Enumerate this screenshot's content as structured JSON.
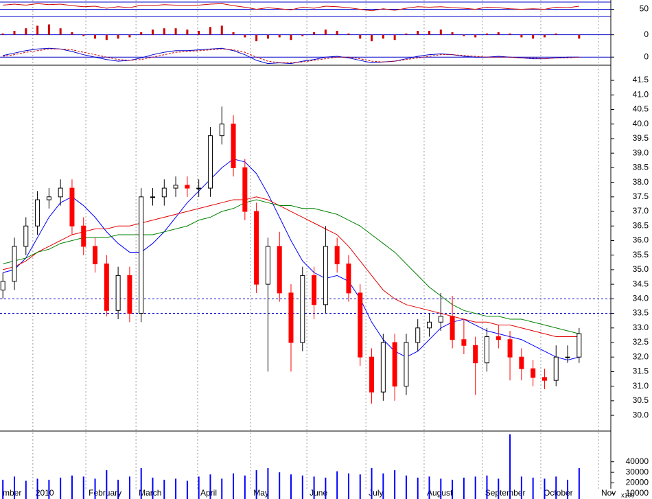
{
  "chart_data": [
    {
      "type": "line",
      "ylim": [
        32,
        68
      ],
      "yticks": [
        50
      ],
      "x": [
        1,
        5,
        9,
        13,
        17,
        21,
        25,
        29,
        33,
        37,
        41,
        45,
        49,
        53,
        57,
        61,
        65,
        69,
        73,
        77,
        81,
        85,
        89,
        93,
        97,
        101,
        105,
        109,
        113,
        117,
        121,
        125,
        129,
        133,
        137,
        141,
        145,
        149,
        153,
        157,
        161,
        165,
        169,
        173,
        177,
        181,
        185,
        189,
        193,
        197,
        201
      ],
      "series": [
        {
          "color": "#cc0000",
          "values": [
            58,
            60,
            58,
            61,
            59,
            60,
            57,
            55,
            56,
            52,
            55,
            53,
            58,
            57,
            59,
            58,
            57,
            58,
            60,
            61,
            57,
            54,
            50,
            53,
            51,
            49,
            54,
            52,
            56,
            55,
            53,
            50,
            47,
            51,
            48,
            52,
            55,
            54,
            55,
            53,
            52,
            50,
            54,
            53,
            51,
            50,
            51,
            50,
            54,
            53,
            56
          ]
        }
      ]
    },
    {
      "type": "histogram-bars",
      "ylim": [
        -0.6,
        1.2
      ],
      "yticks": [
        0
      ],
      "color": "#cc0000",
      "x": [
        1,
        5,
        9,
        13,
        17,
        21,
        25,
        29,
        33,
        37,
        41,
        45,
        49,
        53,
        57,
        61,
        65,
        69,
        73,
        77,
        81,
        85,
        89,
        93,
        97,
        101,
        105,
        109,
        113,
        117,
        121,
        125,
        129,
        133,
        137,
        141,
        145,
        149,
        153,
        157,
        161,
        165,
        169,
        173,
        177,
        181,
        185,
        189,
        193,
        197,
        201
      ],
      "values": [
        0.1,
        0.3,
        0.5,
        0.7,
        0.8,
        0.5,
        0.2,
        -0.1,
        -0.3,
        -0.4,
        -0.3,
        -0.2,
        0.2,
        0.4,
        0.5,
        0.5,
        0.4,
        0.3,
        0.6,
        0.7,
        0.2,
        -0.2,
        -0.5,
        -0.3,
        -0.2,
        -0.4,
        -0.1,
        0.2,
        0.4,
        0.3,
        0.1,
        -0.3,
        -0.5,
        -0.3,
        -0.4,
        0.1,
        0.3,
        0.3,
        0.4,
        0.2,
        -0.1,
        -0.2,
        0.1,
        0.2,
        0.1,
        -0.2,
        -0.3,
        -0.2,
        0.1,
        0.0,
        -0.3
      ]
    },
    {
      "type": "line",
      "ylim": [
        -1.0,
        1.8
      ],
      "yticks": [
        0
      ],
      "x": [
        1,
        5,
        9,
        13,
        17,
        21,
        25,
        29,
        33,
        37,
        41,
        45,
        49,
        53,
        57,
        61,
        65,
        69,
        73,
        77,
        81,
        85,
        89,
        93,
        97,
        101,
        105,
        109,
        113,
        117,
        121,
        125,
        129,
        133,
        137,
        141,
        145,
        149,
        153,
        157,
        161,
        165,
        169,
        173,
        177,
        181,
        185,
        189,
        193,
        197,
        201
      ],
      "series": [
        {
          "color": "#0000cc",
          "values": [
            0.2,
            0.5,
            0.8,
            1.0,
            1.1,
            1.0,
            0.7,
            0.3,
            0.0,
            -0.3,
            -0.5,
            -0.4,
            -0.1,
            0.3,
            0.6,
            0.8,
            0.8,
            0.9,
            1.0,
            1.1,
            0.8,
            0.3,
            -0.4,
            -0.8,
            -0.7,
            -0.8,
            -0.5,
            -0.3,
            0.0,
            0.1,
            -0.1,
            -0.4,
            -0.7,
            -0.6,
            -0.5,
            -0.2,
            0.1,
            0.3,
            0.4,
            0.3,
            0.1,
            0.0,
            0.0,
            0.1,
            0.0,
            -0.1,
            -0.2,
            -0.2,
            -0.1,
            0.0,
            0.0
          ]
        },
        {
          "color": "#cc0000",
          "dashed": true,
          "values": [
            0.1,
            0.3,
            0.6,
            0.8,
            1.0,
            1.0,
            0.9,
            0.6,
            0.3,
            0.0,
            -0.3,
            -0.4,
            -0.3,
            0.0,
            0.3,
            0.6,
            0.7,
            0.8,
            0.9,
            1.0,
            0.9,
            0.6,
            0.0,
            -0.5,
            -0.7,
            -0.7,
            -0.6,
            -0.4,
            -0.2,
            0.0,
            0.0,
            -0.2,
            -0.5,
            -0.6,
            -0.5,
            -0.3,
            -0.1,
            0.1,
            0.3,
            0.3,
            0.2,
            0.1,
            0.0,
            0.0,
            0.0,
            -0.1,
            -0.1,
            -0.2,
            -0.1,
            -0.1,
            0.0
          ]
        }
      ]
    },
    {
      "type": "candlestick",
      "ylim": [
        29.46,
        42.02
      ],
      "xlim": [
        0,
        212
      ],
      "levels": [
        34.0,
        33.5
      ],
      "yticks": [
        {
          "value": 30,
          "label": "30.0"
        },
        30.5,
        {
          "value": 31,
          "label": "31.0"
        },
        31.5,
        {
          "value": 32,
          "label": "32.0"
        },
        32.5,
        {
          "value": 33,
          "label": "33.0"
        },
        33.5,
        {
          "value": 34,
          "label": "34.0"
        },
        34.5,
        {
          "value": 35,
          "label": "35.0"
        },
        35.5,
        {
          "value": 36,
          "label": "36.0"
        },
        36.5,
        {
          "value": 37,
          "label": "37.0"
        },
        37.5,
        {
          "value": 38,
          "label": "38.0"
        },
        38.5,
        {
          "value": 39,
          "label": "39.0"
        },
        39.5,
        {
          "value": 40,
          "label": "40.0"
        },
        40.5,
        {
          "value": 41,
          "label": "41.0"
        },
        41.5
      ],
      "xticks": [
        {
          "value": 0,
          "label": "mber"
        },
        {
          "value": 11.4,
          "label": "2010"
        },
        {
          "value": 29.8,
          "label": "February"
        },
        {
          "value": 47.2,
          "label": "March"
        },
        {
          "value": 68.6,
          "label": "April"
        },
        {
          "value": 87,
          "label": "May"
        },
        {
          "value": 106.5,
          "label": "June"
        },
        {
          "value": 127,
          "label": "July"
        },
        {
          "value": 147.2,
          "label": "August"
        },
        {
          "value": 167.4,
          "label": "September"
        },
        {
          "value": 187.7,
          "label": "October"
        },
        {
          "value": 207.7,
          "label": "Nov"
        }
      ],
      "x": [
        1,
        5,
        9,
        13,
        17,
        21,
        25,
        29,
        33,
        37,
        41,
        45,
        49,
        53,
        57,
        61,
        65,
        69,
        73,
        77,
        81,
        85,
        89,
        93,
        97,
        101,
        105,
        109,
        113,
        117,
        121,
        125,
        129,
        133,
        137,
        141,
        145,
        149,
        153,
        157,
        161,
        165,
        169,
        173,
        177,
        181,
        185,
        189,
        193,
        197,
        201
      ],
      "open": [
        34.3,
        34.6,
        35.8,
        36.5,
        37.4,
        37.5,
        37.8,
        36.5,
        35.8,
        35.2,
        33.6,
        34.8,
        33.5,
        37.5,
        37.5,
        37.8,
        37.9,
        37.8,
        37.8,
        39.6,
        40.0,
        38.5,
        37.0,
        34.5,
        35.8,
        34.2,
        32.5,
        34.8,
        33.8,
        35.8,
        35.2,
        34.2,
        32.0,
        30.8,
        32.5,
        31.0,
        32.5,
        33.0,
        33.2,
        33.4,
        32.6,
        32.4,
        31.8,
        32.7,
        32.6,
        32.0,
        31.6,
        31.3,
        31.2,
        32.0,
        32.0
      ],
      "high": [
        34.9,
        36.1,
        36.8,
        37.7,
        37.8,
        38.1,
        38.1,
        36.8,
        36.1,
        35.5,
        35.1,
        35.1,
        37.8,
        37.8,
        38.1,
        38.2,
        38.2,
        38.1,
        39.9,
        40.6,
        40.3,
        38.8,
        37.3,
        36.1,
        36.3,
        34.5,
        35.1,
        35.1,
        36.5,
        36.1,
        35.5,
        34.5,
        32.3,
        32.8,
        32.8,
        32.8,
        33.3,
        33.5,
        34.2,
        34.1,
        33.3,
        32.7,
        33.0,
        33.1,
        32.9,
        32.3,
        31.9,
        31.6,
        32.4,
        32.4,
        33.0
      ],
      "low": [
        34.0,
        34.3,
        35.5,
        36.2,
        37.1,
        37.2,
        36.2,
        35.5,
        34.9,
        33.4,
        33.3,
        33.2,
        33.2,
        37.2,
        37.2,
        37.5,
        37.5,
        37.5,
        37.5,
        39.3,
        38.2,
        36.7,
        34.2,
        31.5,
        33.9,
        31.5,
        32.2,
        33.3,
        33.5,
        34.9,
        33.9,
        31.7,
        30.4,
        30.5,
        30.5,
        30.7,
        32.2,
        32.7,
        32.9,
        32.3,
        32.1,
        30.7,
        31.5,
        32.3,
        31.2,
        31.2,
        31.0,
        30.9,
        31.0,
        31.8,
        31.8
      ],
      "close": [
        34.6,
        35.8,
        36.5,
        37.4,
        37.5,
        37.8,
        36.5,
        35.8,
        35.2,
        33.6,
        34.8,
        33.5,
        37.5,
        37.5,
        37.8,
        37.9,
        37.8,
        37.8,
        39.6,
        40.0,
        38.5,
        37.0,
        34.5,
        35.8,
        34.2,
        32.5,
        34.8,
        33.8,
        35.8,
        35.2,
        34.2,
        32.0,
        30.8,
        32.5,
        31.0,
        32.5,
        33.0,
        33.2,
        33.4,
        32.6,
        32.4,
        31.8,
        32.7,
        32.6,
        32.0,
        31.6,
        31.3,
        31.2,
        32.0,
        32.0,
        32.8
      ],
      "series": [
        {
          "color": "#0000ff",
          "values": [
            34.9,
            35.0,
            35.4,
            36.1,
            36.8,
            37.3,
            37.5,
            37.2,
            36.8,
            36.3,
            35.9,
            35.6,
            35.6,
            35.9,
            36.3,
            36.8,
            37.3,
            37.7,
            38.1,
            38.5,
            38.8,
            38.7,
            38.3,
            37.6,
            36.8,
            36.0,
            35.3,
            34.9,
            34.7,
            34.8,
            34.6,
            34.0,
            33.2,
            32.6,
            32.2,
            32.0,
            32.2,
            32.6,
            33.0,
            33.2,
            33.3,
            33.1,
            32.9,
            32.8,
            32.7,
            32.6,
            32.4,
            32.2,
            32.0,
            31.9,
            32.0
          ]
        },
        {
          "color": "#e00000",
          "values": [
            35.0,
            35.1,
            35.3,
            35.6,
            35.8,
            36.0,
            36.2,
            36.3,
            36.4,
            36.4,
            36.5,
            36.5,
            36.6,
            36.7,
            36.8,
            36.9,
            37.0,
            37.1,
            37.2,
            37.3,
            37.4,
            37.4,
            37.5,
            37.4,
            37.2,
            37.0,
            36.8,
            36.6,
            36.4,
            36.2,
            35.8,
            35.3,
            34.8,
            34.3,
            34.0,
            33.8,
            33.7,
            33.6,
            33.5,
            33.4,
            33.3,
            33.2,
            33.2,
            33.1,
            33.1,
            33.0,
            32.9,
            32.8,
            32.7,
            32.7,
            32.7
          ]
        },
        {
          "color": "#008000",
          "values": [
            35.2,
            35.3,
            35.4,
            35.6,
            35.7,
            35.9,
            36.0,
            36.1,
            36.1,
            36.1,
            36.2,
            36.2,
            36.2,
            36.2,
            36.3,
            36.4,
            36.5,
            36.7,
            36.8,
            37.0,
            37.1,
            37.3,
            37.4,
            37.3,
            37.2,
            37.2,
            37.1,
            37.1,
            37.0,
            36.9,
            36.7,
            36.5,
            36.2,
            35.9,
            35.6,
            35.2,
            34.8,
            34.4,
            34.1,
            33.8,
            33.6,
            33.5,
            33.4,
            33.4,
            33.3,
            33.3,
            33.2,
            33.1,
            33.0,
            32.9,
            32.8
          ]
        }
      ]
    },
    {
      "type": "volume-bars",
      "ylim": [
        4800,
        69000
      ],
      "yticks": [
        10000,
        20000,
        30000,
        40000
      ],
      "unit_label": "x100",
      "color": "#0000ff",
      "x": [
        1,
        5,
        9,
        13,
        17,
        21,
        25,
        29,
        33,
        37,
        41,
        45,
        49,
        53,
        57,
        61,
        65,
        69,
        73,
        77,
        81,
        85,
        89,
        93,
        97,
        101,
        105,
        109,
        113,
        117,
        121,
        125,
        129,
        133,
        137,
        141,
        145,
        149,
        153,
        157,
        161,
        165,
        169,
        173,
        177,
        181,
        185,
        189,
        193,
        197,
        201
      ],
      "values": [
        23000,
        26000,
        22000,
        24000,
        23000,
        25000,
        27000,
        26000,
        24000,
        32000,
        23000,
        26000,
        34000,
        25000,
        23000,
        24000,
        22000,
        26000,
        28000,
        24000,
        29000,
        27000,
        32000,
        34000,
        30000,
        28000,
        27000,
        26000,
        25000,
        31000,
        29000,
        28000,
        34000,
        29000,
        32000,
        27000,
        25000,
        26000,
        24000,
        23000,
        25000,
        26000,
        27000,
        24000,
        66000,
        26000,
        25000,
        24000,
        26000,
        23000,
        34000
      ]
    }
  ]
}
